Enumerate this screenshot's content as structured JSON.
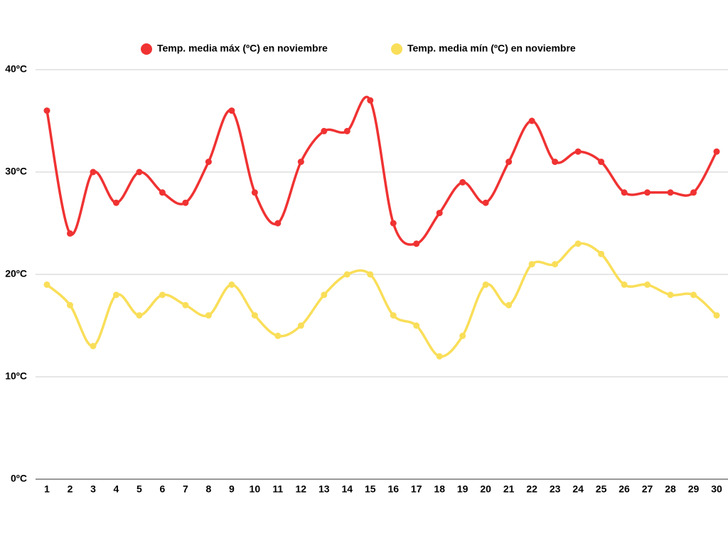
{
  "chart_data": {
    "type": "line",
    "categories": [
      "1",
      "2",
      "3",
      "4",
      "5",
      "6",
      "7",
      "8",
      "9",
      "10",
      "11",
      "12",
      "13",
      "14",
      "15",
      "16",
      "17",
      "18",
      "19",
      "20",
      "21",
      "22",
      "23",
      "24",
      "25",
      "26",
      "27",
      "28",
      "29",
      "30"
    ],
    "series": [
      {
        "name": "Temp. media máx (ºC) en noviembre",
        "color": "#f03232",
        "values": [
          36,
          24,
          30,
          27,
          30,
          28,
          27,
          31,
          36,
          28,
          25,
          31,
          34,
          34,
          37,
          25,
          23,
          26,
          29,
          27,
          31,
          35,
          31,
          32,
          31,
          28,
          28,
          28,
          28,
          32
        ]
      },
      {
        "name": "Temp. media mín (ºC) en noviembre",
        "color": "#f9de59",
        "values": [
          19,
          17,
          13,
          18,
          16,
          18,
          17,
          16,
          19,
          16,
          14,
          15,
          18,
          20,
          20,
          16,
          15,
          12,
          14,
          19,
          17,
          21,
          21,
          23,
          22,
          19,
          19,
          18,
          18,
          16
        ]
      }
    ],
    "ylim": [
      0,
      40
    ],
    "yticks": [
      {
        "value": 0,
        "label": "0ºC"
      },
      {
        "value": 10,
        "label": "10ºC"
      },
      {
        "value": 20,
        "label": "20ºC"
      },
      {
        "value": 30,
        "label": "30ºC"
      },
      {
        "value": 40,
        "label": "40ºC"
      }
    ],
    "grid": true,
    "legend": "top",
    "smooth": true
  }
}
